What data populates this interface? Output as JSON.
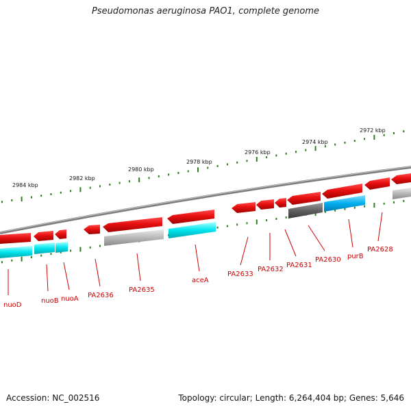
{
  "title": "Pseudomonas aeruginosa PAO1, complete genome",
  "footer": {
    "accession": "Accession: NC_002516",
    "summary": "Topology: circular; Length: 6,264,404 bp; Genes: 5,646"
  },
  "scale_labels": [
    "2984 kbp",
    "2982 kbp",
    "2980 kbp",
    "2978 kbp",
    "2976 kbp",
    "2974 kbp",
    "2972 kbp"
  ],
  "gene_labels": [
    "nuoD",
    "nuoB",
    "nuoA",
    "PA2636",
    "PA2635",
    "aceA",
    "PA2633",
    "PA2632",
    "PA2631",
    "PA2630",
    "purB",
    "PA2628"
  ],
  "colors": {
    "gene_red": "#e81010",
    "cds_cyan": "#00e5ee",
    "cds_blue": "#00aef0",
    "cds_gray": "#b8b8b8",
    "cds_dark": "#606060",
    "backbone": "#8a8a8a",
    "ticks": "#2e7d1e",
    "label": "#cc0000"
  }
}
